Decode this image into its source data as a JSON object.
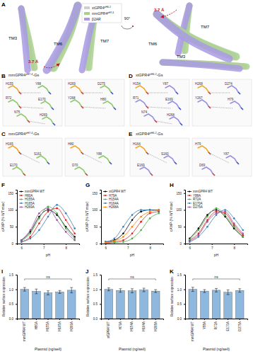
{
  "panel_letters": [
    "A",
    "B",
    "C",
    "D",
    "E",
    "F",
    "G",
    "H",
    "I",
    "J",
    "K"
  ],
  "panel_a": {
    "legend": [
      {
        "text": "xtGPR4",
        "sup": "pH6.2",
        "color": "#cfcfcf"
      },
      {
        "text": "mmGPR4",
        "sup": "pH7.4",
        "color": "#a9d18e"
      },
      {
        "text": "β2AR",
        "color": "#a89be3"
      }
    ],
    "left_labels": [
      "TM3",
      "TM6",
      "TM7"
    ],
    "right_labels": [
      "TM7",
      "TM6",
      "TM3"
    ],
    "distance": "3.7 Å",
    "rotation": "90°"
  },
  "panel_b": {
    "title": {
      "text": "mmGPR4",
      "sup": "pH7.4",
      "suffix": "-Gs"
    },
    "residues": [
      [
        "H155",
        "Y88",
        "R72",
        "E170",
        "N75",
        "H269"
      ],
      [
        "H269",
        "D275",
        "Y268",
        "H80"
      ]
    ]
  },
  "panel_c": {
    "title": {
      "text": "mmGPR4",
      "sup": "pH7.4",
      "suffix": "-Gs"
    },
    "residues": [
      [
        "H165",
        "S161",
        "E170"
      ],
      [
        "H80",
        "Y88",
        "D70"
      ]
    ]
  },
  "panel_d": {
    "title": {
      "text": "xtGPR4",
      "sup": "pH6.2",
      "suffix": "-Gs"
    },
    "residues": [
      [
        "H154",
        "Y87",
        "R71",
        "E169",
        "N74",
        "H268"
      ],
      [
        "H268",
        "D274",
        "Y267",
        "H79"
      ]
    ]
  },
  "panel_e": {
    "title": {
      "text": "xtGPR4",
      "sup": "pH6.2",
      "suffix": "-Gs"
    },
    "residues": [
      [
        "H164",
        "S160",
        "E169"
      ],
      [
        "H79",
        "Y87",
        "D69"
      ]
    ]
  },
  "chart_data": [
    {
      "type": "line",
      "x": [
        6.0,
        6.4,
        6.8,
        7.2,
        7.6,
        8.0,
        8.4
      ],
      "xlim": [
        5.8,
        8.6
      ],
      "xticks": [
        6,
        7,
        8
      ],
      "ylim": [
        0,
        160
      ],
      "yticks": [
        0,
        50,
        100,
        150
      ],
      "x_label": "pH",
      "y_label": "cAMP (% WT max)",
      "legend": "top-left",
      "marker": "circle",
      "series": [
        {
          "name": "mmGPR4 WT",
          "color": "#000000",
          "values": [
            10,
            35,
            80,
            100,
            85,
            50,
            20
          ]
        },
        {
          "name": "H80A",
          "color": "#e41a1c",
          "values": [
            5,
            20,
            60,
            95,
            105,
            70,
            30
          ]
        },
        {
          "name": "H155A",
          "color": "#4daf4a",
          "values": [
            8,
            30,
            75,
            110,
            90,
            45,
            15
          ]
        },
        {
          "name": "H165A",
          "color": "#377eb8",
          "values": [
            5,
            15,
            40,
            80,
            115,
            90,
            45
          ]
        },
        {
          "name": "H269A",
          "color": "#984ea3",
          "values": [
            10,
            40,
            90,
            105,
            70,
            35,
            10
          ]
        }
      ]
    },
    {
      "type": "line",
      "x": [
        6.0,
        6.4,
        6.8,
        7.2,
        7.6,
        8.0,
        8.4
      ],
      "xlim": [
        5.8,
        8.6
      ],
      "xticks": [
        6,
        7,
        8
      ],
      "ylim": [
        0,
        160
      ],
      "yticks": [
        0,
        50,
        100,
        150
      ],
      "x_label": "pH",
      "y_label": "cAMP (% WT max)",
      "legend": "top-left",
      "marker": "circle",
      "series": [
        {
          "name": "xtGPR4 WT",
          "color": "#000000",
          "values": [
            5,
            10,
            30,
            70,
            95,
            100,
            100
          ]
        },
        {
          "name": "H79A",
          "color": "#e41a1c",
          "values": [
            2,
            5,
            10,
            30,
            65,
            90,
            95
          ]
        },
        {
          "name": "H154A",
          "color": "#4daf4a",
          "values": [
            0,
            3,
            5,
            15,
            40,
            75,
            90
          ]
        },
        {
          "name": "H164A",
          "color": "#377eb8",
          "values": [
            5,
            15,
            50,
            85,
            100,
            100,
            98
          ]
        },
        {
          "name": "H268A",
          "color": "#ff7f00",
          "values": [
            3,
            8,
            20,
            50,
            80,
            95,
            100
          ]
        }
      ]
    },
    {
      "type": "line",
      "x": [
        6.0,
        6.4,
        6.8,
        7.2,
        7.6,
        8.0,
        8.4
      ],
      "xlim": [
        5.8,
        8.6
      ],
      "xticks": [
        6,
        7,
        8
      ],
      "ylim": [
        0,
        160
      ],
      "yticks": [
        0,
        50,
        100,
        150
      ],
      "x_label": "pH",
      "y_label": "cAMP (% WT max)",
      "legend": "top-left",
      "marker": "circle",
      "series": [
        {
          "name": "mmGPR4 WT",
          "color": "#000000",
          "values": [
            15,
            45,
            85,
            100,
            80,
            45,
            20
          ]
        },
        {
          "name": "Y88A",
          "color": "#e41a1c",
          "values": [
            10,
            30,
            70,
            95,
            90,
            55,
            25
          ]
        },
        {
          "name": "R72A",
          "color": "#4daf4a",
          "values": [
            12,
            40,
            80,
            105,
            85,
            50,
            20
          ]
        },
        {
          "name": "E170A",
          "color": "#377eb8",
          "values": [
            5,
            20,
            50,
            85,
            100,
            75,
            40
          ]
        },
        {
          "name": "D275A",
          "color": "#984ea3",
          "values": [
            8,
            25,
            65,
            90,
            95,
            60,
            30
          ]
        }
      ]
    },
    {
      "type": "bar",
      "categories": [
        "mmGPR4 WT",
        "H80A",
        "H155A",
        "H165A",
        "H269A"
      ],
      "values": [
        1.0,
        0.93,
        0.88,
        0.91,
        0.97
      ],
      "errors": [
        0.06,
        0.08,
        0.07,
        0.05,
        0.09
      ],
      "color": "#8fb8de",
      "ylim": [
        0,
        1.5
      ],
      "yticks": [
        {
          "value": 0,
          "label": "0.0"
        },
        {
          "value": 0.5,
          "label": "0.5"
        },
        {
          "value": 1,
          "label": "1.0"
        },
        {
          "value": 1.5,
          "label": "1.5"
        }
      ],
      "y_label": "Relative surface expression",
      "x_label": "Plasmid (ng/well)",
      "annotation": "ns"
    },
    {
      "type": "bar",
      "categories": [
        "xtGPR4 WT",
        "H79A",
        "H154A",
        "H164A",
        "H268A"
      ],
      "values": [
        1.0,
        0.96,
        0.95,
        0.98,
        0.94
      ],
      "errors": [
        0.05,
        0.06,
        0.07,
        0.06,
        0.05
      ],
      "color": "#8fb8de",
      "ylim": [
        0,
        1.5
      ],
      "yticks": [
        {
          "value": 0,
          "label": "0.0"
        },
        {
          "value": 0.5,
          "label": "0.5"
        },
        {
          "value": 1,
          "label": "1.0"
        },
        {
          "value": 1.5,
          "label": "1.5"
        }
      ],
      "y_label": "Relative surface expression",
      "x_label": "Plasmid (ng/well)",
      "annotation": "ns"
    },
    {
      "type": "bar",
      "categories": [
        "mmGPR4 WT",
        "Y88A",
        "R72A",
        "E170A",
        "D275A"
      ],
      "values": [
        1.0,
        0.94,
        0.97,
        0.9,
        0.96
      ],
      "errors": [
        0.07,
        0.05,
        0.06,
        0.08,
        0.06
      ],
      "color": "#8fb8de",
      "ylim": [
        0,
        1.5
      ],
      "yticks": [
        {
          "value": 0,
          "label": "0.0"
        },
        {
          "value": 0.5,
          "label": "0.5"
        },
        {
          "value": 1,
          "label": "1.0"
        },
        {
          "value": 1.5,
          "label": "1.5"
        }
      ],
      "y_label": "Relative surface expression",
      "x_label": "Plasmid (ng/well)",
      "annotation": "ns"
    }
  ]
}
